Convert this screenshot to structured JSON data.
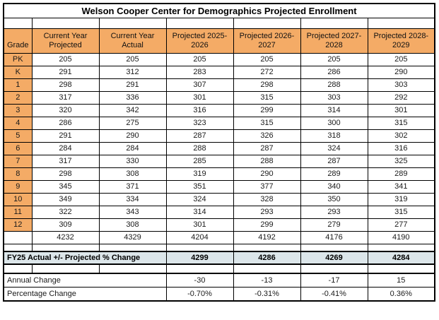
{
  "title": "Welson Cooper Center for Demographics Projected Enrollment",
  "colors": {
    "header_bg": "#f4ab66",
    "highlight_bg": "#dce6ea",
    "border": "#000000"
  },
  "table": {
    "columns": [
      "Grade",
      "Current Year Projected",
      "Current Year Actual",
      "Projected 2025-2026",
      "Projected 2026-2027",
      "Projected 2027-2028",
      "Projected 2028-2029"
    ],
    "rows": [
      {
        "grade": "PK",
        "values": [
          205,
          205,
          205,
          205,
          205,
          205
        ]
      },
      {
        "grade": "K",
        "values": [
          291,
          312,
          283,
          272,
          286,
          290
        ]
      },
      {
        "grade": "1",
        "values": [
          298,
          291,
          307,
          298,
          288,
          303
        ]
      },
      {
        "grade": "2",
        "values": [
          317,
          336,
          301,
          315,
          303,
          292
        ]
      },
      {
        "grade": "3",
        "values": [
          320,
          342,
          316,
          299,
          314,
          301
        ]
      },
      {
        "grade": "4",
        "values": [
          286,
          275,
          323,
          315,
          300,
          315
        ]
      },
      {
        "grade": "5",
        "values": [
          291,
          290,
          287,
          326,
          318,
          302
        ]
      },
      {
        "grade": "6",
        "values": [
          284,
          284,
          288,
          287,
          324,
          316
        ]
      },
      {
        "grade": "7",
        "values": [
          317,
          330,
          285,
          288,
          287,
          325
        ]
      },
      {
        "grade": "8",
        "values": [
          298,
          308,
          319,
          290,
          289,
          289
        ]
      },
      {
        "grade": "9",
        "values": [
          345,
          371,
          351,
          377,
          340,
          341
        ]
      },
      {
        "grade": "10",
        "values": [
          349,
          334,
          324,
          328,
          350,
          319
        ]
      },
      {
        "grade": "11",
        "values": [
          322,
          343,
          314,
          293,
          293,
          315
        ]
      },
      {
        "grade": "12",
        "values": [
          309,
          308,
          301,
          299,
          279,
          277
        ]
      }
    ],
    "totals": {
      "values": [
        4232,
        4329,
        4204,
        4192,
        4176,
        4190
      ]
    },
    "fy25": {
      "label": "FY25 Actual +/- Projected % Change",
      "values": [
        4299,
        4286,
        4269,
        4284
      ]
    },
    "annual_change": {
      "label": "Annual Change",
      "values": [
        "-30",
        "-13",
        "-17",
        "15"
      ]
    },
    "percentage_change": {
      "label": "Percentage Change",
      "values": [
        "-0.70%",
        "-0.31%",
        "-0.41%",
        "0.36%"
      ]
    }
  }
}
